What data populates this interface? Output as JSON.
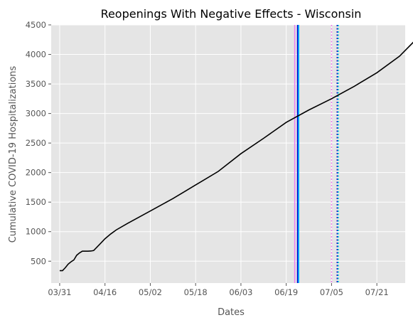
{
  "chart_data": {
    "type": "line",
    "title": "Reopenings With Negative Effects - Wisconsin",
    "xlabel": "Dates",
    "ylabel": "Cumulative COVID-19 Hospitalizations",
    "x_tick_labels": [
      "03/31",
      "04/16",
      "05/02",
      "05/18",
      "06/03",
      "06/19",
      "07/05",
      "07/21"
    ],
    "y_ticks": [
      500,
      1000,
      1500,
      2000,
      2500,
      3000,
      3500,
      4000,
      4500
    ],
    "ylim": [
      130,
      4500
    ],
    "xlim": [
      "2020-03-28",
      "2020-07-31"
    ],
    "grid": true,
    "background": "#e5e5e5",
    "series": [
      {
        "color": "#000000",
        "points": [
          [
            "2020-03-31",
            340
          ],
          [
            "2020-04-01",
            340
          ],
          [
            "2020-04-02",
            390
          ],
          [
            "2020-04-03",
            450
          ],
          [
            "2020-04-04",
            490
          ],
          [
            "2020-04-05",
            520
          ],
          [
            "2020-04-06",
            600
          ],
          [
            "2020-04-07",
            640
          ],
          [
            "2020-04-08",
            670
          ],
          [
            "2020-04-09",
            670
          ],
          [
            "2020-04-10",
            670
          ],
          [
            "2020-04-11",
            672
          ],
          [
            "2020-04-12",
            680
          ],
          [
            "2020-04-14",
            780
          ],
          [
            "2020-04-16",
            880
          ],
          [
            "2020-04-18",
            960
          ],
          [
            "2020-04-20",
            1030
          ],
          [
            "2020-04-24",
            1140
          ],
          [
            "2020-05-02",
            1350
          ],
          [
            "2020-05-10",
            1560
          ],
          [
            "2020-05-18",
            1790
          ],
          [
            "2020-05-26",
            2020
          ],
          [
            "2020-06-03",
            2320
          ],
          [
            "2020-06-11",
            2580
          ],
          [
            "2020-06-19",
            2850
          ],
          [
            "2020-06-27",
            3060
          ],
          [
            "2020-07-05",
            3250
          ],
          [
            "2020-07-13",
            3460
          ],
          [
            "2020-07-21",
            3690
          ],
          [
            "2020-07-29",
            3970
          ],
          [
            "2020-08-05",
            4310
          ]
        ]
      }
    ],
    "vertical_lines": [
      {
        "date": "2020-06-22",
        "color": "#ee82ee",
        "style": "solid"
      },
      {
        "date": "2020-06-23",
        "color": "#0000cd",
        "style": "solid"
      },
      {
        "date": "2020-06-23",
        "color": "#00bfff",
        "style": "solid"
      },
      {
        "date": "2020-07-05",
        "color": "#ee82ee",
        "style": "dotted"
      },
      {
        "date": "2020-07-07",
        "color": "#0000cd",
        "style": "dotted"
      },
      {
        "date": "2020-07-07",
        "color": "#00ced1",
        "style": "dotted"
      }
    ]
  }
}
